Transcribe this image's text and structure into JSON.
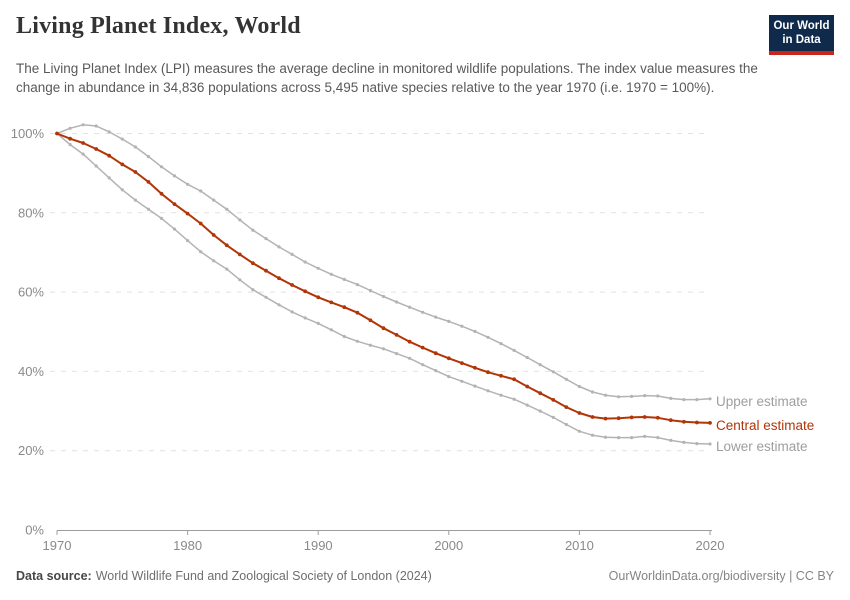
{
  "header": {
    "title": "Living Planet Index, World",
    "subtitle": "The Living Planet Index (LPI) measures the average decline in monitored wildlife populations. The index value measures the change in abundance in 34,836 populations across 5,495 native species relative to the year 1970 (i.e. 1970 = 100%)."
  },
  "logo": {
    "line1": "Our World",
    "line2": "in Data",
    "bg_color": "#102a4c",
    "accent_color": "#c9271e"
  },
  "chart_data": {
    "type": "line",
    "title": "Living Planet Index, World",
    "xlabel": "",
    "ylabel": "",
    "ylim": [
      0,
      100
    ],
    "grid": "horizontal-dashed",
    "legend_position": "end-of-line-labels-right",
    "x": [
      1970,
      1971,
      1972,
      1973,
      1974,
      1975,
      1976,
      1977,
      1978,
      1979,
      1980,
      1981,
      1982,
      1983,
      1984,
      1985,
      1986,
      1987,
      1988,
      1989,
      1990,
      1991,
      1992,
      1993,
      1994,
      1995,
      1996,
      1997,
      1998,
      1999,
      2000,
      2001,
      2002,
      2003,
      2004,
      2005,
      2006,
      2007,
      2008,
      2009,
      2010,
      2011,
      2012,
      2013,
      2014,
      2015,
      2016,
      2017,
      2018,
      2019,
      2020
    ],
    "series": [
      {
        "name": "Upper estimate",
        "color": "#b3b3b3",
        "label_color": "#9e9e9e",
        "values": [
          100,
          101.3,
          102.2,
          101.9,
          100.4,
          98.6,
          96.6,
          94.2,
          91.6,
          89.3,
          87.2,
          85.5,
          83.2,
          80.9,
          78.2,
          75.6,
          73.5,
          71.4,
          69.5,
          67.6,
          66.0,
          64.5,
          63.2,
          61.9,
          60.4,
          58.9,
          57.5,
          56.2,
          54.9,
          53.7,
          52.6,
          51.4,
          50.1,
          48.6,
          47.0,
          45.3,
          43.5,
          41.7,
          39.9,
          38.0,
          36.2,
          34.8,
          34.0,
          33.6,
          33.7,
          33.9,
          33.8,
          33.2,
          32.9,
          32.9,
          33.1
        ]
      },
      {
        "name": "Central estimate",
        "color": "#b13507",
        "label_color": "#b13507",
        "values": [
          100,
          98.7,
          97.6,
          96.1,
          94.4,
          92.2,
          90.3,
          87.8,
          84.8,
          82.2,
          79.8,
          77.3,
          74.4,
          71.8,
          69.5,
          67.3,
          65.4,
          63.5,
          61.8,
          60.2,
          58.7,
          57.4,
          56.2,
          54.8,
          52.9,
          50.9,
          49.2,
          47.5,
          46.0,
          44.6,
          43.3,
          42.1,
          40.9,
          39.8,
          38.9,
          38.0,
          36.2,
          34.5,
          32.8,
          31.0,
          29.5,
          28.5,
          28.1,
          28.2,
          28.4,
          28.5,
          28.3,
          27.7,
          27.3,
          27.1,
          27.0
        ]
      },
      {
        "name": "Lower estimate",
        "color": "#b3b3b3",
        "label_color": "#9e9e9e",
        "values": [
          100,
          97.2,
          94.8,
          91.8,
          88.8,
          85.8,
          83.2,
          80.9,
          78.6,
          75.9,
          73.0,
          70.2,
          67.9,
          65.8,
          63.1,
          60.6,
          58.7,
          56.8,
          55.0,
          53.5,
          52.1,
          50.5,
          48.8,
          47.6,
          46.6,
          45.7,
          44.5,
          43.3,
          41.7,
          40.2,
          38.7,
          37.5,
          36.3,
          35.1,
          34.0,
          33.0,
          31.5,
          30.0,
          28.4,
          26.6,
          24.9,
          23.9,
          23.4,
          23.3,
          23.3,
          23.6,
          23.3,
          22.6,
          22.1,
          21.8,
          21.7
        ]
      }
    ],
    "yticks": [
      {
        "value": 0,
        "label": "0%"
      },
      {
        "value": 20,
        "label": "20%"
      },
      {
        "value": 40,
        "label": "40%"
      },
      {
        "value": 60,
        "label": "60%"
      },
      {
        "value": 80,
        "label": "80%"
      },
      {
        "value": 100,
        "label": "100%"
      }
    ],
    "xticks": [
      {
        "value": 1970,
        "label": "1970"
      },
      {
        "value": 1980,
        "label": "1980"
      },
      {
        "value": 1990,
        "label": "1990"
      },
      {
        "value": 2000,
        "label": "2000"
      },
      {
        "value": 2010,
        "label": "2010"
      },
      {
        "value": 2020,
        "label": "2020"
      }
    ],
    "colors": {
      "grid": "#e2e2e2",
      "axis": "#9c9c9c",
      "tick_label": "#8a8a8a"
    }
  },
  "footer": {
    "data_source_label": "Data source:",
    "data_source_value": "World Wildlife Fund and Zoological Society of London (2024)",
    "credit": "OurWorldinData.org/biodiversity | CC BY"
  }
}
